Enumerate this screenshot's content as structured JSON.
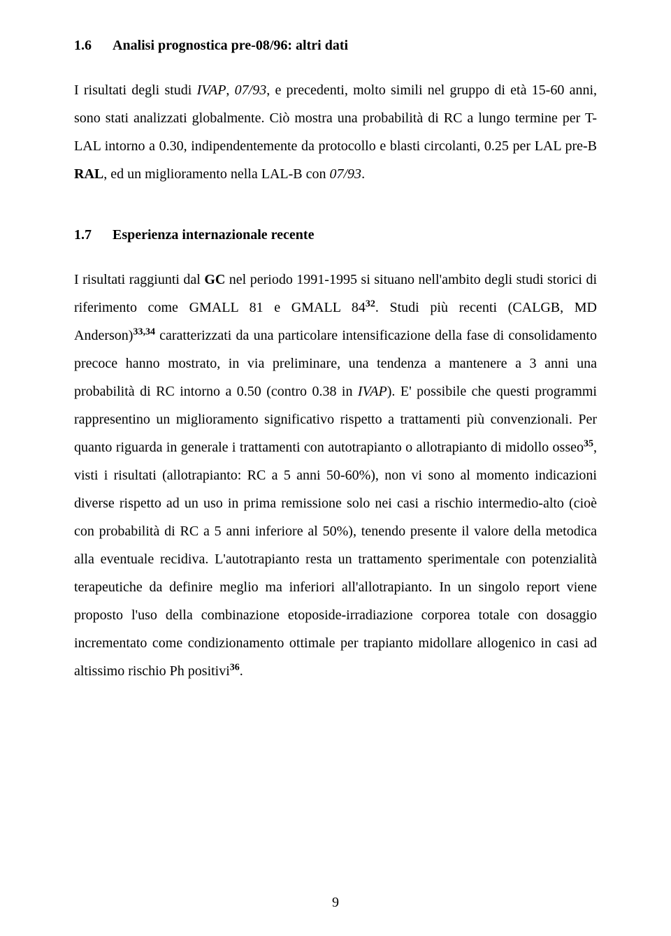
{
  "section16": {
    "num": "1.6",
    "title": "Analisi prognostica pre-08/96: altri dati",
    "para": {
      "t1": "I risultati degli studi ",
      "ivap": "IVAP",
      "t2": ", ",
      "s0793": "07/93",
      "t3": ", e precedenti, molto simili nel gruppo di età 15-60 anni, sono stati analizzati globalmente. Ciò mostra una probabilità di RC a lungo termine per T-LAL intorno a 0.30, indipendentemente da protocollo e blasti circolanti, 0.25 per LAL pre-B ",
      "ral": "RAL",
      "t4": ", ed un miglioramento nella LAL-B con ",
      "s0793b": "07/93",
      "t5": "."
    }
  },
  "section17": {
    "num": "1.7",
    "title": "Esperienza internazionale recente",
    "para": {
      "p1": "I risultati raggiunti dal ",
      "gc": "GC",
      "p2": " nel periodo 1991-1995 si situano nell'ambito degli studi storici di riferimento come GMALL 81 e GMALL 84",
      "s32": "32",
      "p3": ". Studi più recenti (CALGB, MD Anderson)",
      "s3334": "33,34",
      "p4": " caratterizzati da una particolare intensificazione della fase di consolidamento precoce hanno mostrato, in via preliminare, una tendenza a mantenere a 3 anni una probabilità di RC intorno a 0.50 (contro 0.38 in ",
      "ivap2": "IVAP",
      "p5": "). E' possibile che questi programmi rappresentino un miglioramento significativo rispetto a trattamenti più convenzionali. Per quanto riguarda in generale i trattamenti con autotrapianto o allotrapianto di midollo osseo",
      "s35": "35",
      "p6": ", visti i risultati (allotrapianto: RC a 5 anni 50-60%), non vi sono al momento indicazioni diverse rispetto ad un uso in prima remissione solo nei casi a rischio intermedio-alto (cioè con probabilità di RC a 5 anni inferiore al 50%), tenendo presente il valore della metodica alla eventuale recidiva. L'autotrapianto resta un trattamento sperimentale con potenzialità terapeutiche da definire meglio ma inferiori all'allotrapianto. In un singolo report viene proposto l'uso della combinazione etoposide-irradiazione corporea totale con dosaggio incrementato come condizionamento ottimale per trapianto midollare allogenico in casi ad altissimo rischio Ph positivi",
      "s36": "36",
      "p7": "."
    }
  },
  "pageNumber": "9"
}
